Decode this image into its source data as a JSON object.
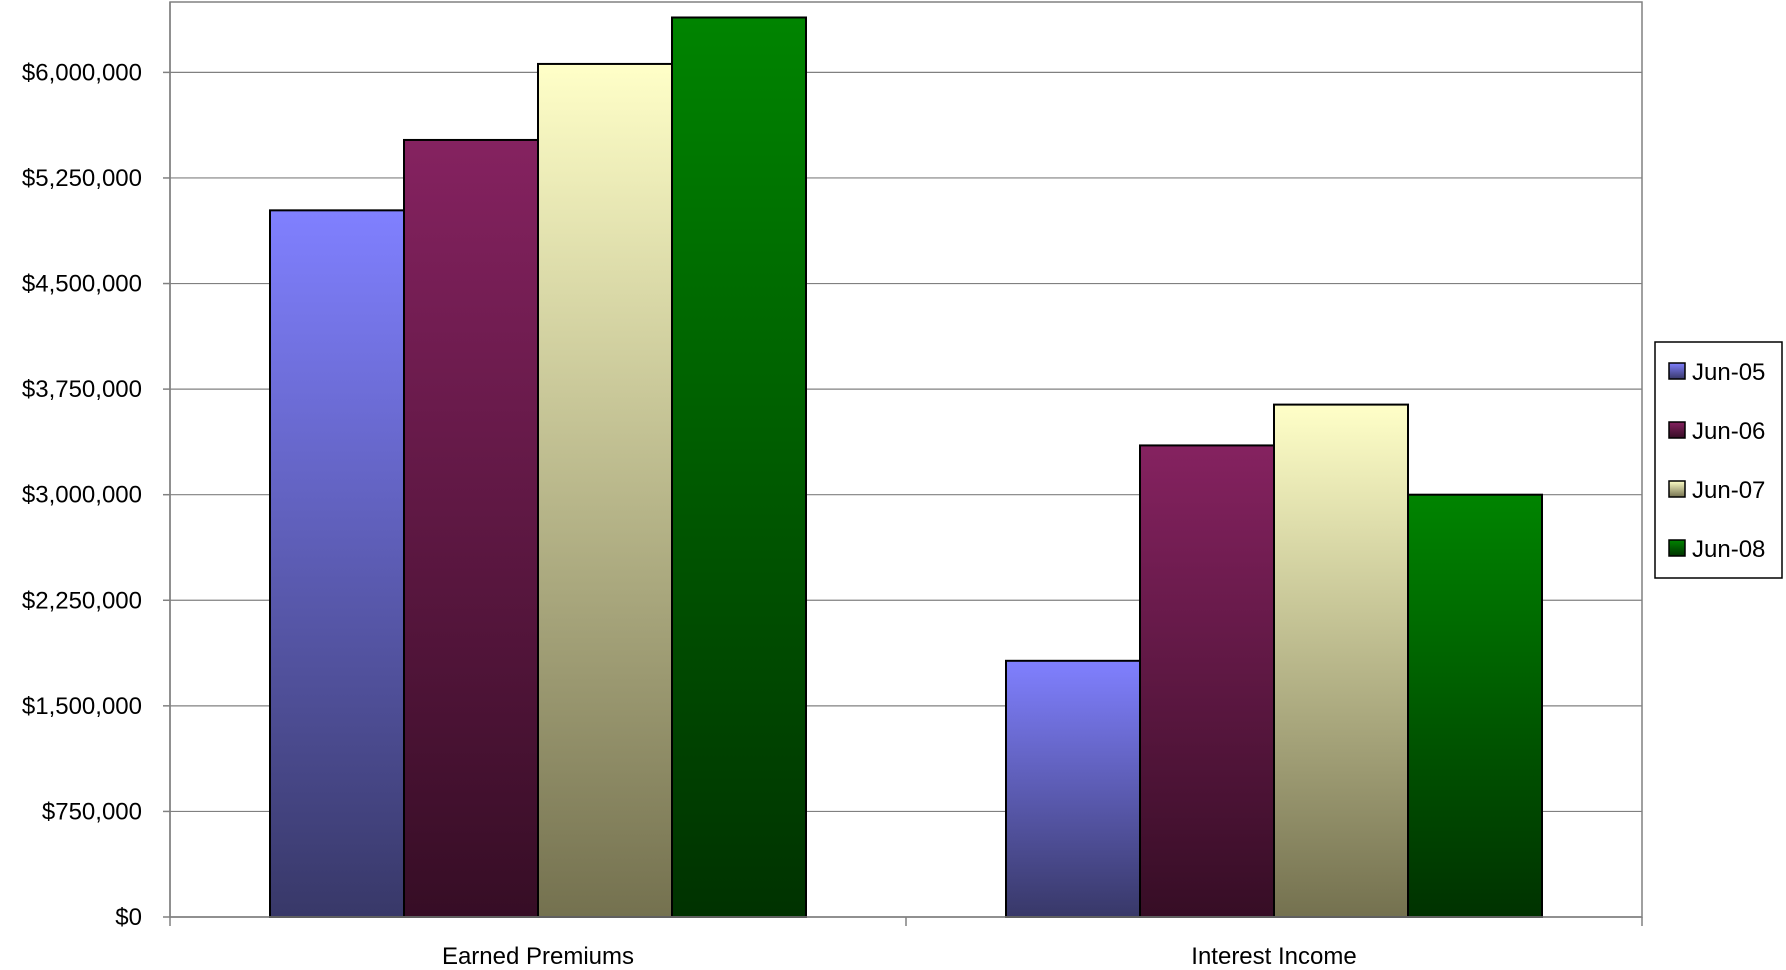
{
  "chart_data": {
    "type": "bar",
    "categories": [
      "Earned Premiums",
      "Interest Income"
    ],
    "series": [
      {
        "name": "Jun-05",
        "values": [
          5020000,
          1820000
        ],
        "color_light": "#8080ff",
        "color_dark": "#383868"
      },
      {
        "name": "Jun-06",
        "values": [
          5520000,
          3350000
        ],
        "color_light": "#852260",
        "color_dark": "#360d25"
      },
      {
        "name": "Jun-07",
        "values": [
          6060000,
          3640000
        ],
        "color_light": "#ffffc8",
        "color_dark": "#74714f"
      },
      {
        "name": "Jun-08",
        "values": [
          6390000,
          3000000
        ],
        "color_light": "#008400",
        "color_dark": "#003200"
      }
    ],
    "ylim": [
      0,
      6500000
    ],
    "yticks": [
      0,
      750000,
      1500000,
      2250000,
      3000000,
      3750000,
      4500000,
      5250000,
      6000000
    ],
    "ytick_labels": [
      "$0",
      "$750,000",
      "$1,500,000",
      "$2,250,000",
      "$3,000,000",
      "$3,750,000",
      "$4,500,000",
      "$5,250,000",
      "$6,000,000"
    ],
    "title": "",
    "xlabel": "",
    "ylabel": "",
    "grid": true,
    "legend_position": "right"
  }
}
